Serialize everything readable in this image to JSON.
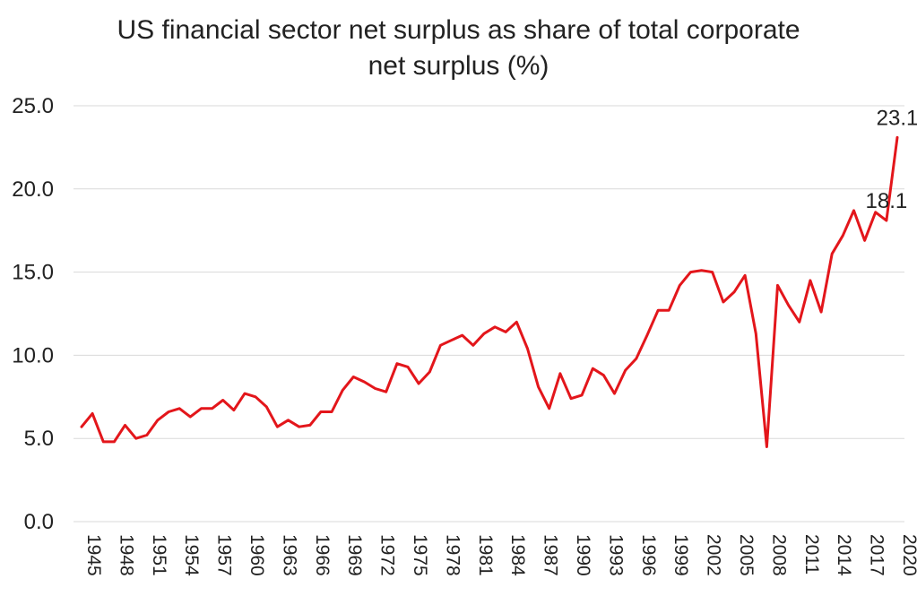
{
  "chart_data": {
    "type": "line",
    "title_lines": [
      "US financial sector net surplus as share of total corporate",
      "net surplus (%)"
    ],
    "xlabel": "",
    "ylabel": "",
    "ylim": [
      0,
      25
    ],
    "yticks": [
      "0.0",
      "5.0",
      "10.0",
      "15.0",
      "20.0",
      "25.0"
    ],
    "grid": true,
    "line_color": "#e3161b",
    "x": [
      1945,
      1946,
      1947,
      1948,
      1949,
      1950,
      1951,
      1952,
      1953,
      1954,
      1955,
      1956,
      1957,
      1958,
      1959,
      1960,
      1961,
      1962,
      1963,
      1964,
      1965,
      1966,
      1967,
      1968,
      1969,
      1970,
      1971,
      1972,
      1973,
      1974,
      1975,
      1976,
      1977,
      1978,
      1979,
      1980,
      1981,
      1982,
      1983,
      1984,
      1985,
      1986,
      1987,
      1988,
      1989,
      1990,
      1991,
      1992,
      1993,
      1994,
      1995,
      1996,
      1997,
      1998,
      1999,
      2000,
      2001,
      2002,
      2003,
      2004,
      2005,
      2006,
      2007,
      2008,
      2009,
      2010,
      2011,
      2012,
      2013,
      2014,
      2015,
      2016,
      2017,
      2018,
      2019,
      2020
    ],
    "xtick_labels": [
      "1945",
      "1948",
      "1951",
      "1954",
      "1957",
      "1960",
      "1963",
      "1966",
      "1969",
      "1972",
      "1975",
      "1978",
      "1981",
      "1984",
      "1987",
      "1990",
      "1993",
      "1996",
      "1999",
      "2002",
      "2005",
      "2008",
      "2011",
      "2014",
      "2017",
      "2020"
    ],
    "series": [
      {
        "values": [
          5.7,
          6.5,
          4.8,
          4.8,
          5.8,
          5.0,
          5.2,
          6.1,
          6.6,
          6.8,
          6.3,
          6.8,
          6.8,
          7.3,
          6.7,
          7.7,
          7.5,
          6.9,
          5.7,
          6.1,
          5.7,
          5.8,
          6.6,
          6.6,
          7.9,
          8.7,
          8.4,
          8.0,
          7.8,
          9.5,
          9.3,
          8.3,
          9.0,
          10.6,
          10.9,
          11.2,
          10.6,
          11.3,
          11.7,
          11.4,
          12.0,
          10.4,
          8.1,
          6.8,
          8.9,
          7.4,
          7.6,
          9.2,
          8.8,
          7.7,
          9.1,
          9.8,
          11.2,
          12.7,
          12.7,
          14.2,
          15.0,
          15.1,
          15.0,
          13.2,
          13.8,
          14.8,
          11.3,
          4.5,
          14.2,
          13.0,
          12.0,
          14.5,
          12.6,
          16.1,
          17.2,
          18.7,
          16.9,
          18.6,
          18.1,
          23.1
        ]
      }
    ],
    "annotations": [
      {
        "x": 2019,
        "y": 18.1,
        "text": "18.1"
      },
      {
        "x": 2020,
        "y": 23.1,
        "text": "23.1"
      }
    ]
  }
}
